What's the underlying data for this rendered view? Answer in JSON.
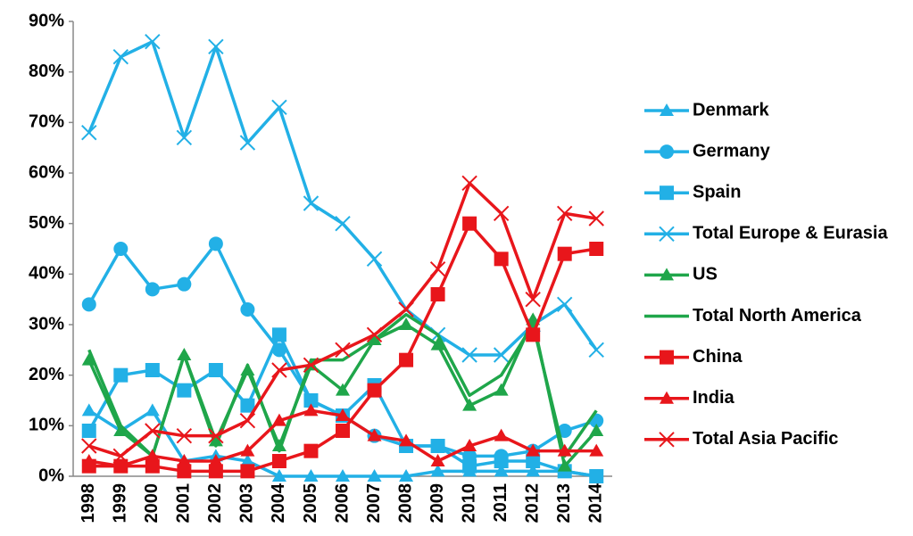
{
  "chart_data": {
    "type": "line",
    "categories": [
      "1998",
      "1999",
      "2000",
      "2001",
      "2002",
      "2003",
      "2004",
      "2005",
      "2006",
      "2007",
      "2008",
      "2009",
      "2010",
      "2011",
      "2012",
      "2013",
      "2014"
    ],
    "ylim": [
      0,
      90
    ],
    "yticks": [
      {
        "value": 0,
        "label": "0%"
      },
      {
        "value": 10,
        "label": "10%"
      },
      {
        "value": 20,
        "label": "20%"
      },
      {
        "value": 30,
        "label": "30%"
      },
      {
        "value": 40,
        "label": "40%"
      },
      {
        "value": 50,
        "label": "50%"
      },
      {
        "value": 60,
        "label": "60%"
      },
      {
        "value": 70,
        "label": "70%"
      },
      {
        "value": 80,
        "label": "80%"
      },
      {
        "value": 90,
        "label": "90%"
      }
    ],
    "grid": false,
    "legend": "right",
    "series": [
      {
        "name": "Denmark",
        "color": "#22b0e6",
        "marker": "triangle",
        "values": [
          13,
          9,
          13,
          3,
          4,
          3,
          0,
          0,
          0,
          0,
          0,
          1,
          1,
          1,
          1,
          1,
          0
        ]
      },
      {
        "name": "Germany",
        "color": "#22b0e6",
        "marker": "circle",
        "values": [
          34,
          45,
          37,
          38,
          46,
          33,
          25,
          15,
          12,
          8,
          6,
          6,
          4,
          4,
          5,
          9,
          11
        ]
      },
      {
        "name": "Spain",
        "color": "#22b0e6",
        "marker": "square",
        "values": [
          9,
          20,
          21,
          17,
          21,
          14,
          28,
          15,
          12,
          18,
          6,
          6,
          2,
          3,
          3,
          1,
          0
        ]
      },
      {
        "name": "Total Europe & Eurasia",
        "color": "#22b0e6",
        "marker": "x",
        "values": [
          68,
          83,
          86,
          67,
          85,
          66,
          73,
          54,
          50,
          43,
          33,
          28,
          24,
          24,
          30,
          34,
          25
        ]
      },
      {
        "name": "US",
        "color": "#1fa64a",
        "marker": "triangle",
        "values": [
          23,
          9,
          4,
          24,
          7,
          21,
          6,
          22,
          17,
          27,
          30,
          26,
          14,
          17,
          31,
          2,
          9
        ]
      },
      {
        "name": "Total North America",
        "color": "#1fa64a",
        "marker": "none",
        "values": [
          25,
          10,
          4,
          24,
          6,
          22,
          5,
          23,
          23,
          27,
          32,
          28,
          16,
          20,
          30,
          4,
          13
        ]
      },
      {
        "name": "China",
        "color": "#e8161b",
        "marker": "square",
        "values": [
          2,
          2,
          2,
          1,
          1,
          1,
          3,
          5,
          9,
          17,
          23,
          36,
          50,
          43,
          28,
          44,
          45
        ]
      },
      {
        "name": "India",
        "color": "#e8161b",
        "marker": "triangle",
        "values": [
          3,
          2,
          4,
          3,
          3,
          5,
          11,
          13,
          12,
          8,
          7,
          3,
          6,
          8,
          5,
          5,
          5
        ]
      },
      {
        "name": "Total Asia Pacific",
        "color": "#e8161b",
        "marker": "x",
        "values": [
          6,
          4,
          9,
          8,
          8,
          11,
          21,
          22,
          25,
          28,
          33,
          41,
          58,
          52,
          35,
          52,
          51
        ]
      }
    ]
  }
}
